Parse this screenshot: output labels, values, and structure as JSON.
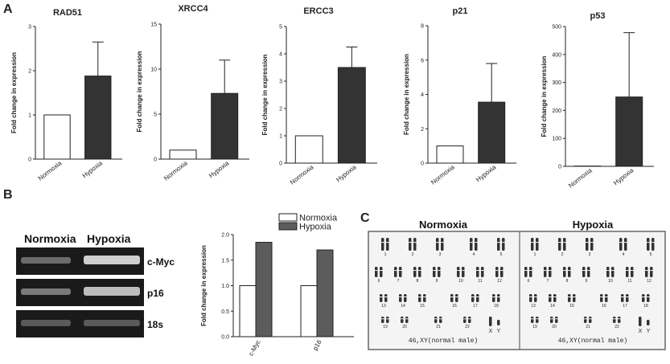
{
  "panels": {
    "a": "A",
    "b": "B",
    "c": "C"
  },
  "ylabel": "Fold change in expression",
  "colors": {
    "normoxia_fill": "#ffffff",
    "hypoxia_fill": "#333333",
    "b_hypoxia_fill": "#5c5c5c",
    "axis": "#222222"
  },
  "chart_data": [
    {
      "type": "bar",
      "title": "RAD51",
      "categories": [
        "Normoxia",
        "Hypoxia"
      ],
      "values": [
        1,
        1.88
      ],
      "errors": [
        0,
        0.77
      ],
      "ylim": [
        0,
        3
      ],
      "yticks": [
        "0",
        "1",
        "2",
        "3"
      ],
      "ylabel": "Fold change in expression"
    },
    {
      "type": "bar",
      "title": "XRCC4",
      "categories": [
        "Normoxia",
        "Hypoxia"
      ],
      "values": [
        1,
        7.3
      ],
      "errors": [
        0,
        3.7
      ],
      "ylim": [
        0,
        15
      ],
      "yticks": [
        "0",
        "5",
        "10",
        "15"
      ],
      "ylabel": "Fold change in expression"
    },
    {
      "type": "bar",
      "title": "ERCC3",
      "categories": [
        "Normoxia",
        "Hypoxia"
      ],
      "values": [
        1,
        3.5
      ],
      "errors": [
        0,
        0.75
      ],
      "ylim": [
        0,
        5
      ],
      "yticks": [
        "0",
        "1",
        "2",
        "3",
        "4",
        "5"
      ],
      "ylabel": "Fold change in expression"
    },
    {
      "type": "bar",
      "title": "p21",
      "categories": [
        "Normoxia",
        "Hypoxia"
      ],
      "values": [
        1,
        3.55
      ],
      "errors": [
        0,
        2.25
      ],
      "ylim": [
        0,
        8
      ],
      "yticks": [
        "0",
        "2",
        "4",
        "6",
        "8"
      ],
      "ylabel": "Fold change in expression"
    },
    {
      "type": "bar",
      "title": "p53",
      "categories": [
        "Normoxia",
        "Hypoxia"
      ],
      "values": [
        1,
        248
      ],
      "errors": [
        0,
        230
      ],
      "ylim": [
        0,
        500
      ],
      "yticks": [
        "0",
        "100",
        "200",
        "300",
        "400",
        "500"
      ],
      "ylabel": "Fold change in expression"
    },
    {
      "type": "bar",
      "title": "",
      "categories": [
        "c-Myc",
        "p16"
      ],
      "series": [
        {
          "name": "Normoxia",
          "values": [
            1.0,
            1.0
          ]
        },
        {
          "name": "Hypoxia",
          "values": [
            1.85,
            1.7
          ]
        }
      ],
      "ylim": [
        0,
        2.0
      ],
      "yticks": [
        "0.0",
        "0.5",
        "1.0",
        "1.5",
        "2.0"
      ],
      "ylabel": "Fold change in expression",
      "legend": "top"
    }
  ],
  "gel": {
    "columns": [
      "Normoxia",
      "Hypoxia"
    ],
    "genes": [
      "c-Myc",
      "p16",
      "18s"
    ]
  },
  "karyotype": {
    "titles": [
      "Normoxia",
      "Hypoxia"
    ],
    "numbers": [
      "1",
      "2",
      "3",
      "4",
      "5",
      "6",
      "7",
      "8",
      "9",
      "10",
      "11",
      "12",
      "13",
      "14",
      "15",
      "16",
      "17",
      "18",
      "19",
      "20",
      "21",
      "22"
    ],
    "sex": [
      "X",
      "Y"
    ],
    "caption": "46,XY(normal male)"
  }
}
